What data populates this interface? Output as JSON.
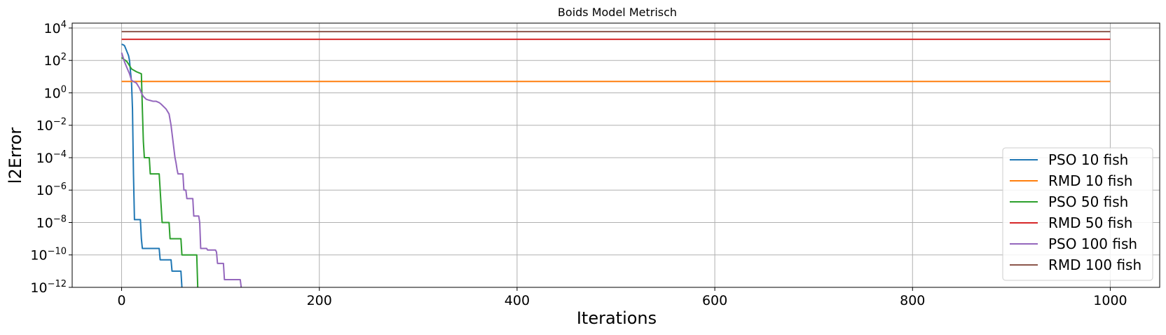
{
  "chart_data": {
    "type": "line",
    "title": "Boids Model Metrisch",
    "xlabel": "Iterations",
    "ylabel": "l2Error",
    "yscale": "log",
    "xlim": [
      -50,
      1050
    ],
    "ylim": [
      1e-12,
      20000
    ],
    "xticks": [
      0,
      200,
      400,
      600,
      800,
      1000
    ],
    "yticks_exponents": [
      4,
      2,
      0,
      -2,
      -4,
      -6,
      -8,
      -10,
      -12
    ],
    "grid": true,
    "legend_position": "lower-right",
    "series": [
      {
        "name": "PSO 10 fish",
        "color": "#1f77b4",
        "x": [
          0,
          2,
          3,
          5,
          7,
          8,
          9,
          10,
          11,
          12,
          13,
          14,
          15,
          19,
          20,
          21,
          23,
          24,
          25,
          38,
          39,
          41,
          50,
          51,
          60,
          61
        ],
        "y": [
          1000,
          900,
          800,
          400,
          200,
          100,
          20,
          5,
          0.1,
          1e-05,
          1.5e-08,
          1.5e-08,
          1.5e-08,
          1.5e-08,
          1e-09,
          2.5e-10,
          2.5e-10,
          2.5e-10,
          2.5e-10,
          2.5e-10,
          5e-11,
          5e-11,
          5e-11,
          1e-11,
          1e-11,
          1e-12
        ]
      },
      {
        "name": "RMD 10 fish",
        "color": "#ff7f0e",
        "x": [
          0,
          1000
        ],
        "y": [
          5,
          5
        ]
      },
      {
        "name": "PSO 50 fish",
        "color": "#2ca02c",
        "x": [
          0,
          2,
          5,
          7,
          10,
          15,
          20,
          21,
          22,
          23,
          24,
          28,
          29,
          30,
          38,
          39,
          40,
          41,
          42,
          48,
          49,
          50,
          55,
          60,
          61,
          62,
          76,
          77
        ],
        "y": [
          150,
          120,
          90,
          60,
          30,
          20,
          15,
          0.1,
          0.001,
          0.0001,
          0.0001,
          0.0001,
          1e-05,
          1e-05,
          1e-05,
          1e-06,
          1e-07,
          1e-08,
          1e-08,
          1e-08,
          1e-09,
          1e-09,
          1e-09,
          1e-09,
          1e-10,
          1e-10,
          1e-10,
          1e-12
        ]
      },
      {
        "name": "RMD 50 fish",
        "color": "#d62728",
        "x": [
          0,
          1000
        ],
        "y": [
          2000,
          2000
        ]
      },
      {
        "name": "PSO 100 fish",
        "color": "#9467bd",
        "x": [
          0,
          3,
          5,
          8,
          10,
          12,
          15,
          18,
          20,
          22,
          25,
          28,
          32,
          35,
          38,
          40,
          45,
          48,
          50,
          52,
          54,
          55,
          56,
          57,
          58,
          60,
          62,
          63,
          65,
          66,
          70,
          72,
          73,
          78,
          79,
          80,
          85,
          86,
          87,
          95,
          96,
          97,
          103,
          104,
          105,
          112,
          120,
          121
        ],
        "y": [
          300,
          80,
          40,
          15,
          6,
          5,
          4,
          2,
          1,
          0.6,
          0.4,
          0.35,
          0.3,
          0.3,
          0.25,
          0.2,
          0.1,
          0.05,
          0.01,
          0.001,
          0.0001,
          5e-05,
          2e-05,
          1e-05,
          1e-05,
          1e-05,
          1e-05,
          1e-06,
          1e-06,
          3e-07,
          3e-07,
          3e-07,
          2.5e-08,
          2.5e-08,
          1e-08,
          2.5e-10,
          2.5e-10,
          2.5e-10,
          2e-10,
          2e-10,
          1.5e-10,
          3e-11,
          3e-11,
          3e-12,
          3e-12,
          3e-12,
          3e-12,
          1e-12
        ]
      },
      {
        "name": "RMD 100 fish",
        "color": "#8c564b",
        "x": [
          0,
          1000
        ],
        "y": [
          6000,
          6000
        ]
      }
    ]
  }
}
